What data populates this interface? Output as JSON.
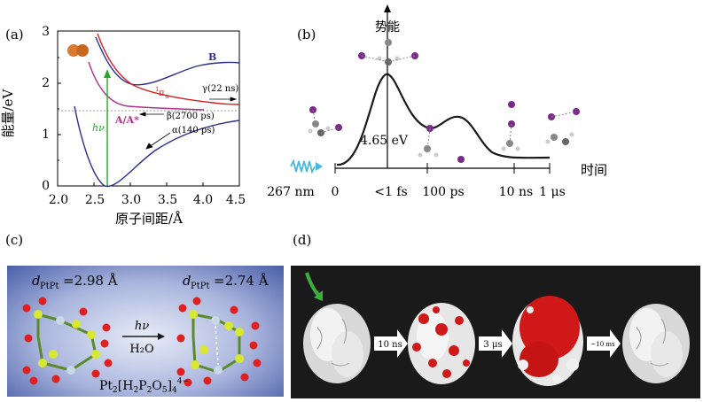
{
  "panel_a": {
    "label": "(a)",
    "ylabel": "能量/eV",
    "xlabel": "原子间距/Å",
    "x_ticks": [
      "2.0",
      "2.5",
      "3.0",
      "3.5",
      "4.0",
      "4.5"
    ],
    "y_ticks": [
      "0",
      "1",
      "2",
      "3"
    ],
    "curve_labels": {
      "B": "B",
      "pi_u_sup": "1",
      "pi_u": "π",
      "pi_u_sub": "u",
      "AA": "A/A*",
      "hv": "hν",
      "gamma": "γ(22 ns)",
      "beta": "β(2700 ps)",
      "alpha": "α(140 ps)"
    },
    "colors": {
      "B": "#2b2f8c",
      "pi": "#d42020",
      "AA": "#b0308c",
      "hv": "#2aa62a",
      "molecule": "#d87a30"
    }
  },
  "panel_b": {
    "label": "(b)",
    "ylabel": "势能",
    "xlabel": "时间",
    "energy": "4.65 eV",
    "time_ticks": [
      "267 nm",
      "0",
      "<1 fs",
      "100 ps",
      "10 ns",
      "1 μs"
    ]
  },
  "panel_c": {
    "label": "(c)",
    "d_left_var": "d",
    "d_left_sub": "PtPt",
    "d_left_val": "=2.98 Å",
    "d_right_var": "d",
    "d_right_sub": "PtPt",
    "d_right_val": "=2.74 Å",
    "arrow_top": "hν",
    "arrow_bottom": "H₂O",
    "formula_main": "Pt",
    "formula_sub1": "2",
    "formula_mid": "[H",
    "formula_sub2": "2",
    "formula_p": "P",
    "formula_sub3": "2",
    "formula_o": "O",
    "formula_sub4": "5",
    "formula_end": "]",
    "formula_sub5": "4",
    "formula_sup": "4−"
  },
  "panel_d": {
    "label": "(d)",
    "steps": [
      "10 ns",
      "3 μs",
      "~10 ms"
    ]
  }
}
